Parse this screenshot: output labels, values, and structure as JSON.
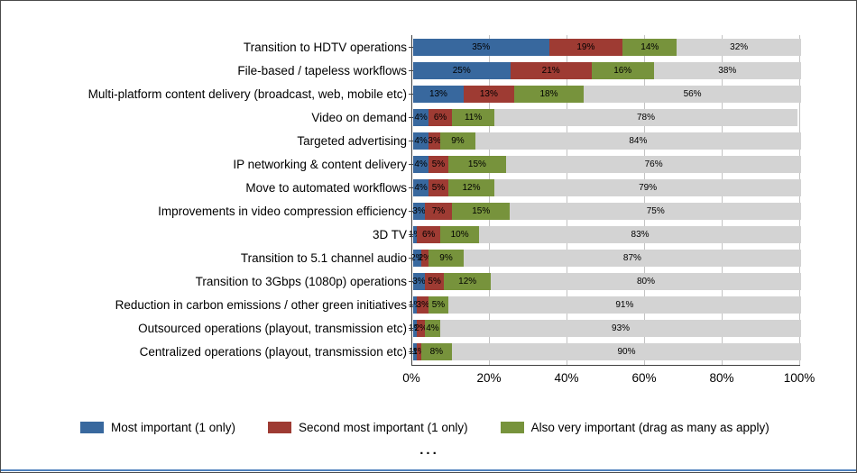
{
  "chart_data": {
    "type": "bar",
    "orientation": "horizontal-stacked",
    "title": "",
    "xlabel": "",
    "ylabel": "",
    "xlim": [
      0,
      100
    ],
    "grid": true,
    "legend_position": "bottom",
    "x_ticks": [
      "0%",
      "20%",
      "40%",
      "60%",
      "80%",
      "100%"
    ],
    "categories": [
      "Transition to HDTV operations",
      "File-based / tapeless workflows",
      "Multi-platform content delivery (broadcast, web, mobile etc)",
      "Video on demand",
      "Targeted advertising",
      "IP networking & content delivery",
      "Move to automated workflows",
      "Improvements in video compression efficiency",
      "3D TV",
      "Transition to 5.1 channel audio",
      "Transition to 3Gbps (1080p) operations",
      "Reduction in carbon emissions / other green initiatives",
      "Outsourced operations (playout, transmission etc)",
      "Centralized operations (playout, transmission etc)"
    ],
    "series": [
      {
        "name": "Most important (1 only)",
        "color": "#38689e",
        "in_legend": true,
        "values": [
          35,
          25,
          13,
          4,
          4,
          4,
          4,
          3,
          1,
          2,
          3,
          1,
          1,
          1
        ]
      },
      {
        "name": "Second most important (1 only)",
        "color": "#9e3b33",
        "in_legend": true,
        "values": [
          19,
          21,
          13,
          6,
          3,
          5,
          5,
          7,
          6,
          2,
          5,
          3,
          2,
          1
        ]
      },
      {
        "name": "Also very important (drag as many as apply)",
        "color": "#77933c",
        "in_legend": true,
        "values": [
          14,
          16,
          18,
          11,
          9,
          15,
          12,
          15,
          10,
          9,
          12,
          5,
          4,
          8
        ]
      },
      {
        "name": "",
        "color": "#d3d3d3",
        "in_legend": false,
        "values": [
          32,
          38,
          56,
          78,
          84,
          76,
          79,
          75,
          83,
          87,
          80,
          91,
          93,
          90
        ]
      }
    ]
  },
  "footer": {
    "ellipsis": "..."
  }
}
